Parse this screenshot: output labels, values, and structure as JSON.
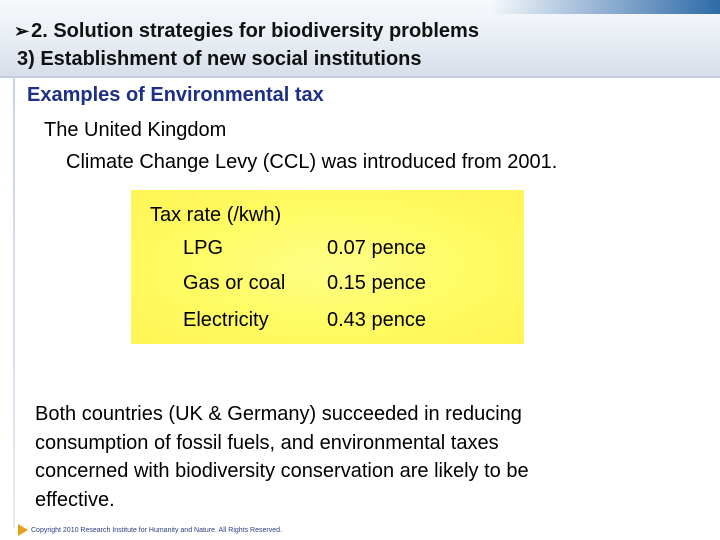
{
  "header": {
    "title_line1": "2. Solution strategies for biodiversity problems",
    "title_line2": "3) Establishment of new social institutions"
  },
  "subheading": "Examples of Environmental tax",
  "country": "The United Kingdom",
  "ccl_text": "Climate Change Levy (CCL) was introduced from 2001.",
  "tax_table": {
    "heading": "Tax rate (/kwh)",
    "rows": [
      {
        "item": "LPG",
        "rate": "0.07 pence"
      },
      {
        "item": "Gas or coal",
        "rate": "0.15 pence"
      },
      {
        "item": "Electricity",
        "rate": "0.43 pence"
      }
    ]
  },
  "conclusion_lines": [
    "Both countries (UK & Germany) succeeded in reducing",
    "consumption of fossil fuels, and environmental taxes",
    "concerned with biodiversity conservation are likely to be",
    "effective."
  ],
  "footer": {
    "copyright": "Copyright 2010 Research Institute for Humanity and Nature. All Rights Reserved."
  },
  "colors": {
    "subheading": "#1d2f86",
    "highlight_box": "#fff966",
    "header_stripe": "#2e6aa8",
    "footer_arrow": "#e8a020"
  }
}
